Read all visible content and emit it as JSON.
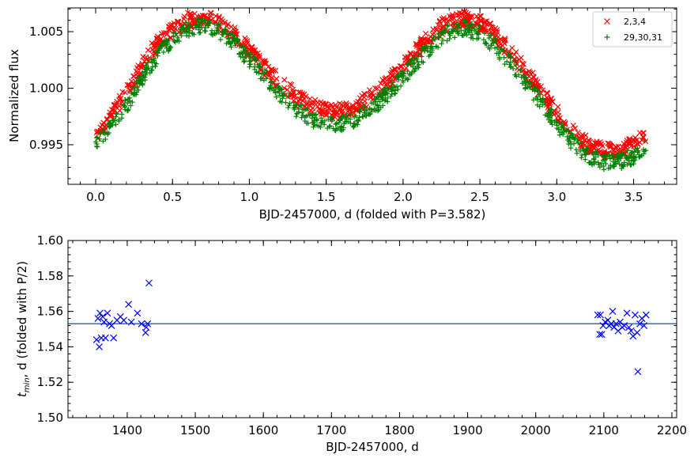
{
  "chart_data": [
    {
      "type": "scatter",
      "xlabel": "BJD-2457000, d (folded with P=3.582)",
      "ylabel": "Normalized flux",
      "xlim": [
        -0.18,
        3.78
      ],
      "ylim": [
        0.9915,
        1.0071
      ],
      "x_ticks": [
        "0.0",
        "0.5",
        "1.0",
        "1.5",
        "2.0",
        "2.5",
        "3.0",
        "3.5"
      ],
      "y_ticks": [
        "0.995",
        "1.000",
        "1.005"
      ],
      "grid": false,
      "legend_position": "top-right",
      "series": [
        {
          "name": "2,3,4",
          "marker": "x",
          "color": "#ff0000",
          "x": [
            0.0,
            0.1,
            0.2,
            0.3,
            0.4,
            0.5,
            0.6,
            0.7,
            0.8,
            0.9,
            1.0,
            1.1,
            1.2,
            1.3,
            1.4,
            1.5,
            1.6,
            1.7,
            1.8,
            1.9,
            2.0,
            2.1,
            2.2,
            2.3,
            2.4,
            2.5,
            2.6,
            2.7,
            2.8,
            2.9,
            3.0,
            3.1,
            3.2,
            3.3,
            3.4,
            3.5,
            3.58
          ],
          "y": [
            0.996,
            0.9975,
            0.9995,
            1.002,
            1.004,
            1.0052,
            1.006,
            1.0062,
            1.0058,
            1.0048,
            1.0033,
            1.0018,
            1.0005,
            0.9993,
            0.9985,
            0.998,
            0.998,
            0.9985,
            0.9993,
            1.0005,
            1.002,
            1.0035,
            1.005,
            1.0058,
            1.0062,
            1.0058,
            1.0047,
            1.0032,
            1.0015,
            0.9996,
            0.9978,
            0.9962,
            0.995,
            0.9945,
            0.9945,
            0.995,
            0.9958
          ]
        },
        {
          "name": "29,30,31",
          "marker": "+",
          "color": "#008000",
          "x": [
            0.0,
            0.1,
            0.2,
            0.3,
            0.4,
            0.5,
            0.6,
            0.7,
            0.8,
            0.9,
            1.0,
            1.1,
            1.2,
            1.3,
            1.4,
            1.5,
            1.6,
            1.7,
            1.8,
            1.9,
            2.0,
            2.1,
            2.2,
            2.3,
            2.4,
            2.5,
            2.6,
            2.7,
            2.8,
            2.9,
            3.0,
            3.1,
            3.2,
            3.3,
            3.4,
            3.5,
            3.58
          ],
          "y": [
            0.9953,
            0.9965,
            0.9985,
            1.0008,
            1.0028,
            1.0043,
            1.0052,
            1.0055,
            1.005,
            1.004,
            1.0025,
            1.001,
            0.9995,
            0.9982,
            0.9973,
            0.9968,
            0.9968,
            0.9973,
            0.9982,
            0.9995,
            1.001,
            1.0025,
            1.004,
            1.005,
            1.0053,
            1.0048,
            1.0037,
            1.0022,
            1.0005,
            0.9987,
            0.9968,
            0.9952,
            0.994,
            0.9935,
            0.9935,
            0.994,
            0.995
          ]
        }
      ]
    },
    {
      "type": "scatter",
      "xlabel": "BJD-2457000, d",
      "ylabel": "t_min, d (folded with P/2)",
      "xlim": [
        1313,
        2207
      ],
      "ylim": [
        1.5,
        1.6
      ],
      "x_ticks": [
        "1400",
        "1500",
        "1600",
        "1700",
        "1800",
        "1900",
        "2000",
        "2100",
        "2200"
      ],
      "y_ticks": [
        "1.50",
        "1.52",
        "1.54",
        "1.56",
        "1.58",
        "1.60"
      ],
      "grid": false,
      "hline": {
        "y": 1.553,
        "color": "#1f77b4"
      },
      "series": [
        {
          "marker": "x",
          "color": "#0000ff",
          "x": [
            1355,
            1357,
            1359,
            1360,
            1362,
            1364,
            1366,
            1368,
            1371,
            1374,
            1377,
            1380,
            1385,
            1390,
            1395,
            1402,
            1406,
            1415,
            1421,
            1427,
            1428,
            1430,
            1432,
            2091,
            2094,
            2095,
            2097,
            2099,
            2102,
            2106,
            2108,
            2111,
            2113,
            2115,
            2118,
            2121,
            2124,
            2127,
            2130,
            2134,
            2137,
            2140,
            2143,
            2146,
            2149,
            2150,
            2153,
            2156,
            2159,
            2162
          ],
          "y": [
            1.544,
            1.556,
            1.54,
            1.559,
            1.545,
            1.557,
            1.554,
            1.545,
            1.559,
            1.553,
            1.552,
            1.545,
            1.555,
            1.557,
            1.555,
            1.564,
            1.554,
            1.559,
            1.553,
            1.548,
            1.551,
            1.553,
            1.576,
            1.558,
            1.547,
            1.558,
            1.547,
            1.552,
            1.554,
            1.555,
            1.552,
            1.553,
            1.56,
            1.551,
            1.553,
            1.549,
            1.554,
            1.551,
            1.552,
            1.559,
            1.551,
            1.549,
            1.546,
            1.558,
            1.548,
            1.526,
            1.553,
            1.556,
            1.552,
            1.558
          ]
        }
      ]
    }
  ]
}
